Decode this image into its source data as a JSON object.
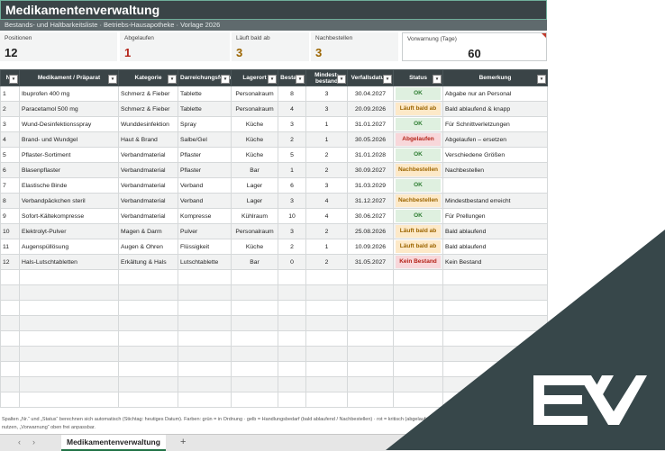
{
  "header": {
    "title": "Medikamentenverwaltung",
    "subtitle": "Bestands- und Haltbarkeitsliste  ·  Betriebs-Hausapotheke  ·  Vorlage 2026"
  },
  "kpis": [
    {
      "label": "Positionen",
      "value": "12",
      "color": "#222222"
    },
    {
      "label": "Abgelaufen",
      "value": "1",
      "color": "#b42318"
    },
    {
      "label": "Läuft bald ab",
      "value": "3",
      "color": "#9c6500"
    },
    {
      "label": "Nachbestellen",
      "value": "3",
      "color": "#9c6500"
    },
    {
      "label": "Vorwarnung (Tage)",
      "value": "60",
      "color": "#222222"
    }
  ],
  "columns": [
    "Nr.",
    "Medikament / Präparat",
    "Kategorie",
    "Darreichungsform",
    "Lagerort",
    "Bestand",
    "Mindest-\nbestand",
    "Verfallsdatum",
    "Status",
    "Bemerkung"
  ],
  "rows": [
    {
      "nr": "1",
      "name": "Ibuprofen 400 mg",
      "kategorie": "Schmerz & Fieber",
      "form": "Tablette",
      "lagerort": "Personalraum",
      "bestand": "8",
      "mindest": "3",
      "verfall": "30.04.2027",
      "status": "OK",
      "status_type": "ok",
      "bemerkung": "Abgabe nur an Personal"
    },
    {
      "nr": "2",
      "name": "Paracetamol 500 mg",
      "kategorie": "Schmerz & Fieber",
      "form": "Tablette",
      "lagerort": "Personalraum",
      "bestand": "4",
      "mindest": "3",
      "verfall": "20.09.2026",
      "status": "Läuft bald ab",
      "status_type": "warn",
      "bemerkung": "Bald ablaufend & knapp"
    },
    {
      "nr": "3",
      "name": "Wund-Desinfektionsspray",
      "kategorie": "Wunddesinfektion",
      "form": "Spray",
      "lagerort": "Küche",
      "bestand": "3",
      "mindest": "1",
      "verfall": "31.01.2027",
      "status": "OK",
      "status_type": "ok",
      "bemerkung": "Für Schnittverletzungen"
    },
    {
      "nr": "4",
      "name": "Brand- und Wundgel",
      "kategorie": "Haut & Brand",
      "form": "Salbe/Gel",
      "lagerort": "Küche",
      "bestand": "2",
      "mindest": "1",
      "verfall": "30.05.2026",
      "status": "Abgelaufen",
      "status_type": "bad",
      "bemerkung": "Abgelaufen – ersetzen"
    },
    {
      "nr": "5",
      "name": "Pflaster-Sortiment",
      "kategorie": "Verbandmaterial",
      "form": "Pflaster",
      "lagerort": "Küche",
      "bestand": "5",
      "mindest": "2",
      "verfall": "31.01.2028",
      "status": "OK",
      "status_type": "ok",
      "bemerkung": "Verschiedene Größen"
    },
    {
      "nr": "6",
      "name": "Blasenpflaster",
      "kategorie": "Verbandmaterial",
      "form": "Pflaster",
      "lagerort": "Bar",
      "bestand": "1",
      "mindest": "2",
      "verfall": "30.09.2027",
      "status": "Nachbestellen",
      "status_type": "warn",
      "bemerkung": "Nachbestellen"
    },
    {
      "nr": "7",
      "name": "Elastische Binde",
      "kategorie": "Verbandmaterial",
      "form": "Verband",
      "lagerort": "Lager",
      "bestand": "6",
      "mindest": "3",
      "verfall": "31.03.2029",
      "status": "OK",
      "status_type": "ok",
      "bemerkung": ""
    },
    {
      "nr": "8",
      "name": "Verbandpäckchen steril",
      "kategorie": "Verbandmaterial",
      "form": "Verband",
      "lagerort": "Lager",
      "bestand": "3",
      "mindest": "4",
      "verfall": "31.12.2027",
      "status": "Nachbestellen",
      "status_type": "warn",
      "bemerkung": "Mindestbestand erreicht"
    },
    {
      "nr": "9",
      "name": "Sofort-Kältekompresse",
      "kategorie": "Verbandmaterial",
      "form": "Kompresse",
      "lagerort": "Kühlraum",
      "bestand": "10",
      "mindest": "4",
      "verfall": "30.06.2027",
      "status": "OK",
      "status_type": "ok",
      "bemerkung": "Für Prellungen"
    },
    {
      "nr": "10",
      "name": "Elektrolyt-Pulver",
      "kategorie": "Magen & Darm",
      "form": "Pulver",
      "lagerort": "Personalraum",
      "bestand": "3",
      "mindest": "2",
      "verfall": "25.08.2026",
      "status": "Läuft bald ab",
      "status_type": "warn",
      "bemerkung": "Bald ablaufend"
    },
    {
      "nr": "11",
      "name": "Augenspüllösung",
      "kategorie": "Augen & Ohren",
      "form": "Flüssigkeit",
      "lagerort": "Küche",
      "bestand": "2",
      "mindest": "1",
      "verfall": "10.09.2026",
      "status": "Läuft bald ab",
      "status_type": "warn",
      "bemerkung": "Bald ablaufend"
    },
    {
      "nr": "12",
      "name": "Hals-Lutschtabletten",
      "kategorie": "Erkältung & Hals",
      "form": "Lutschtablette",
      "lagerort": "Bar",
      "bestand": "0",
      "mindest": "2",
      "verfall": "31.05.2027",
      "status": "Kein Bestand",
      "status_type": "bad",
      "bemerkung": "Kein Bestand"
    }
  ],
  "empty_rows": 9,
  "footnote": "Spalten „Nr.“ und „Status“ berechnen sich automatisch (Stichtag: heutiges Datum).   Farben:  grün = in Ordnung   ·   gelb = Handlungsbedarf (bald ablaufend / Nachbestellen)   ·   rot = kritisch (abgelaufen / ke",
  "footnote2": "nutzen, „Vorwarnung“ oben frei anpassbar.",
  "sheet_tab": "Medikamentenverwaltung",
  "nav": {
    "prev": "‹",
    "next": "›",
    "add": "+"
  },
  "colors": {
    "header_bg": "#3a4447",
    "ok": "#2e7d32",
    "warn": "#9c6500",
    "bad": "#b42318",
    "overlay": "#37474a"
  },
  "icons": [
    "filter-dropdown-icon",
    "chevron-left-icon",
    "chevron-right-icon",
    "plus-icon",
    "ex-logo-icon"
  ],
  "logo_text": "EX"
}
